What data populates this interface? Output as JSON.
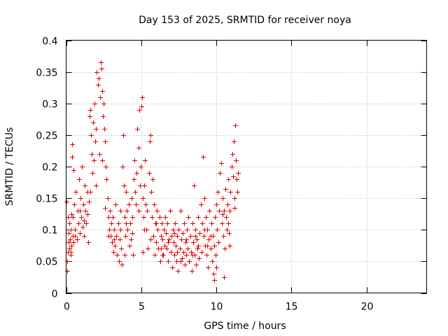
{
  "chart_data": {
    "type": "scatter",
    "title": "Day 153 of 2025, SRMTID for receiver noya",
    "xlabel": "GPS time / hours",
    "ylabel": "SRMTID / TECUs",
    "xlim": [
      0,
      24
    ],
    "ylim": [
      0,
      0.4
    ],
    "xticks": [
      0,
      5,
      10,
      15,
      20
    ],
    "xtick_labels": [
      "0",
      "5",
      "10",
      "15",
      "20"
    ],
    "yticks": [
      0,
      0.05,
      0.1,
      0.15,
      0.2,
      0.25,
      0.3,
      0.35,
      0.4
    ],
    "ytick_labels": [
      "0",
      "0.05",
      "0.1",
      "0.15",
      "0.2",
      "0.25",
      "0.3",
      "0.35",
      "0.4"
    ],
    "grid": true,
    "marker": "+",
    "color": "#e00000",
    "series": [
      {
        "name": "SRMTID",
        "points": [
          [
            0.02,
            0.145
          ],
          [
            0.05,
            0.035
          ],
          [
            0.08,
            0.05
          ],
          [
            0.1,
            0.12
          ],
          [
            0.12,
            0.065
          ],
          [
            0.15,
            0.08
          ],
          [
            0.18,
            0.095
          ],
          [
            0.2,
            0.07
          ],
          [
            0.22,
            0.11
          ],
          [
            0.25,
            0.085
          ],
          [
            0.28,
            0.06
          ],
          [
            0.3,
            0.1
          ],
          [
            0.33,
            0.125
          ],
          [
            0.35,
            0.075
          ],
          [
            0.38,
            0.215
          ],
          [
            0.4,
            0.235
          ],
          [
            0.42,
            0.09
          ],
          [
            0.45,
            0.12
          ],
          [
            0.48,
            0.195
          ],
          [
            0.5,
            0.08
          ],
          [
            0.55,
            0.14
          ],
          [
            0.6,
            0.1
          ],
          [
            0.65,
            0.16
          ],
          [
            0.7,
            0.085
          ],
          [
            0.75,
            0.13
          ],
          [
            0.8,
            0.11
          ],
          [
            0.85,
            0.18
          ],
          [
            0.9,
            0.095
          ],
          [
            0.95,
            0.15
          ],
          [
            1.0,
            0.12
          ],
          [
            1.05,
            0.2
          ],
          [
            1.1,
            0.105
          ],
          [
            1.15,
            0.14
          ],
          [
            1.2,
            0.09
          ],
          [
            1.25,
            0.17
          ],
          [
            1.3,
            0.13
          ],
          [
            1.35,
            0.11
          ],
          [
            1.4,
            0.16
          ],
          [
            1.45,
            0.08
          ],
          [
            1.5,
            0.145
          ],
          [
            1.55,
            0.28
          ],
          [
            1.6,
            0.29
          ],
          [
            1.65,
            0.25
          ],
          [
            1.7,
            0.22
          ],
          [
            1.75,
            0.19
          ],
          [
            1.8,
            0.27
          ],
          [
            1.85,
            0.21
          ],
          [
            1.9,
            0.3
          ],
          [
            1.95,
            0.24
          ],
          [
            2.0,
            0.26
          ],
          [
            2.05,
            0.35
          ],
          [
            2.1,
            0.33
          ],
          [
            2.15,
            0.34
          ],
          [
            2.2,
            0.22
          ],
          [
            2.25,
            0.31
          ],
          [
            2.3,
            0.365
          ],
          [
            2.35,
            0.355
          ],
          [
            2.4,
            0.32
          ],
          [
            2.45,
            0.28
          ],
          [
            2.5,
            0.3
          ],
          [
            2.55,
            0.26
          ],
          [
            2.6,
            0.24
          ],
          [
            2.65,
            0.2
          ],
          [
            2.7,
            0.18
          ],
          [
            2.75,
            0.15
          ],
          [
            2.8,
            0.12
          ],
          [
            2.85,
            0.1
          ],
          [
            2.9,
            0.13
          ],
          [
            2.95,
            0.09
          ],
          [
            3.0,
            0.11
          ],
          [
            3.05,
            0.08
          ],
          [
            3.1,
            0.12
          ],
          [
            3.15,
            0.065
          ],
          [
            3.2,
            0.1
          ],
          [
            3.25,
            0.075
          ],
          [
            3.3,
            0.14
          ],
          [
            3.35,
            0.09
          ],
          [
            3.4,
            0.06
          ],
          [
            3.45,
            0.11
          ],
          [
            3.5,
            0.05
          ],
          [
            3.55,
            0.085
          ],
          [
            3.6,
            0.13
          ],
          [
            3.65,
            0.07
          ],
          [
            3.7,
            0.045
          ],
          [
            3.75,
            0.2
          ],
          [
            3.8,
            0.25
          ],
          [
            3.85,
            0.17
          ],
          [
            3.9,
            0.12
          ],
          [
            3.95,
            0.09
          ],
          [
            4.0,
            0.16
          ],
          [
            4.05,
            0.13
          ],
          [
            4.1,
            0.1
          ],
          [
            4.15,
            0.14
          ],
          [
            4.2,
            0.075
          ],
          [
            4.25,
            0.11
          ],
          [
            4.3,
            0.085
          ],
          [
            4.35,
            0.15
          ],
          [
            4.4,
            0.12
          ],
          [
            4.45,
            0.06
          ],
          [
            4.5,
            0.18
          ],
          [
            4.55,
            0.21
          ],
          [
            4.6,
            0.16
          ],
          [
            4.65,
            0.14
          ],
          [
            4.7,
            0.19
          ],
          [
            4.75,
            0.26
          ],
          [
            4.8,
            0.23
          ],
          [
            4.85,
            0.29
          ],
          [
            4.9,
            0.17
          ],
          [
            4.95,
            0.2
          ],
          [
            5.0,
            0.295
          ],
          [
            5.05,
            0.31
          ],
          [
            5.1,
            0.15
          ],
          [
            5.15,
            0.12
          ],
          [
            5.2,
            0.17
          ],
          [
            5.25,
            0.21
          ],
          [
            5.3,
            0.14
          ],
          [
            5.35,
            0.1
          ],
          [
            5.4,
            0.13
          ],
          [
            5.45,
            0.07
          ],
          [
            5.5,
            0.19
          ],
          [
            5.55,
            0.24
          ],
          [
            5.6,
            0.25
          ],
          [
            5.65,
            0.16
          ],
          [
            5.7,
            0.12
          ],
          [
            5.75,
            0.18
          ],
          [
            5.8,
            0.09
          ],
          [
            5.85,
            0.14
          ],
          [
            5.9,
            0.06
          ],
          [
            5.95,
            0.11
          ],
          [
            6.0,
            0.08
          ],
          [
            6.05,
            0.13
          ],
          [
            6.1,
            0.1
          ],
          [
            6.15,
            0.07
          ],
          [
            6.2,
            0.12
          ],
          [
            6.25,
            0.05
          ],
          [
            6.3,
            0.09
          ],
          [
            6.35,
            0.11
          ],
          [
            6.4,
            0.085
          ],
          [
            6.45,
            0.06
          ],
          [
            6.5,
            0.1
          ],
          [
            6.55,
            0.075
          ],
          [
            6.6,
            0.12
          ],
          [
            6.65,
            0.095
          ],
          [
            6.7,
            0.07
          ],
          [
            6.75,
            0.11
          ],
          [
            6.8,
            0.05
          ],
          [
            6.85,
            0.085
          ],
          [
            6.9,
            0.13
          ],
          [
            6.95,
            0.065
          ],
          [
            7.0,
            0.09
          ],
          [
            7.05,
            0.04
          ],
          [
            7.1,
            0.1
          ],
          [
            7.15,
            0.08
          ],
          [
            7.2,
            0.06
          ],
          [
            7.25,
            0.11
          ],
          [
            7.3,
            0.075
          ],
          [
            7.35,
            0.05
          ],
          [
            7.4,
            0.09
          ],
          [
            7.45,
            0.035
          ],
          [
            7.5,
            0.1
          ],
          [
            7.55,
            0.07
          ],
          [
            7.6,
            0.13
          ],
          [
            7.65,
            0.085
          ],
          [
            7.7,
            0.055
          ],
          [
            7.75,
            0.095
          ],
          [
            7.8,
            0.065
          ],
          [
            7.85,
            0.11
          ],
          [
            7.9,
            0.045
          ],
          [
            7.95,
            0.08
          ],
          [
            8.0,
            0.06
          ],
          [
            8.05,
            0.1
          ],
          [
            8.1,
            0.07
          ],
          [
            8.15,
            0.12
          ],
          [
            8.2,
            0.05
          ],
          [
            8.25,
            0.09
          ],
          [
            8.3,
            0.065
          ],
          [
            8.35,
            0.035
          ],
          [
            8.4,
            0.11
          ],
          [
            8.45,
            0.08
          ],
          [
            8.5,
            0.17
          ],
          [
            8.55,
            0.06
          ],
          [
            8.6,
            0.1
          ],
          [
            8.65,
            0.045
          ],
          [
            8.7,
            0.085
          ],
          [
            8.75,
            0.07
          ],
          [
            8.8,
            0.12
          ],
          [
            8.85,
            0.055
          ],
          [
            8.9,
            0.095
          ],
          [
            8.95,
            0.14
          ],
          [
            9.0,
            0.065
          ],
          [
            9.05,
            0.11
          ],
          [
            9.1,
            0.215
          ],
          [
            9.15,
            0.09
          ],
          [
            9.2,
            0.15
          ],
          [
            9.25,
            0.075
          ],
          [
            9.3,
            0.12
          ],
          [
            9.35,
            0.06
          ],
          [
            9.4,
            0.1
          ],
          [
            9.45,
            0.04
          ],
          [
            9.5,
            0.085
          ],
          [
            9.55,
            0.13
          ],
          [
            9.6,
            0.07
          ],
          [
            9.65,
            0.11
          ],
          [
            9.7,
            0.05
          ],
          [
            9.75,
            0.09
          ],
          [
            9.8,
            0.03
          ],
          [
            9.85,
            0.075
          ],
          [
            9.9,
            0.12
          ],
          [
            9.95,
            0.06
          ],
          [
            10.0,
            0.14
          ],
          [
            10.05,
            0.1
          ],
          [
            10.1,
            0.16
          ],
          [
            10.15,
            0.08
          ],
          [
            10.2,
            0.13
          ],
          [
            10.25,
            0.19
          ],
          [
            10.3,
            0.205
          ],
          [
            10.35,
            0.11
          ],
          [
            10.4,
            0.15
          ],
          [
            10.45,
            0.09
          ],
          [
            10.5,
            0.13
          ],
          [
            10.55,
            0.07
          ],
          [
            10.6,
            0.165
          ],
          [
            10.65,
            0.12
          ],
          [
            10.7,
            0.1
          ],
          [
            10.75,
            0.14
          ],
          [
            10.8,
            0.18
          ],
          [
            10.85,
            0.095
          ],
          [
            10.9,
            0.13
          ],
          [
            10.95,
            0.16
          ],
          [
            11.0,
            0.2
          ],
          [
            11.05,
            0.22
          ],
          [
            11.1,
            0.185
          ],
          [
            11.15,
            0.24
          ],
          [
            11.2,
            0.15
          ],
          [
            11.25,
            0.265
          ],
          [
            11.3,
            0.21
          ],
          [
            11.35,
            0.18
          ],
          [
            11.4,
            0.16
          ],
          [
            11.45,
            0.19
          ],
          [
            0.3,
            0.065
          ],
          [
            0.6,
            0.09
          ],
          [
            0.9,
            0.13
          ],
          [
            1.2,
            0.115
          ],
          [
            1.6,
            0.16
          ],
          [
            2.0,
            0.17
          ],
          [
            2.4,
            0.21
          ],
          [
            2.8,
            0.09
          ],
          [
            3.2,
            0.085
          ],
          [
            3.6,
            0.1
          ],
          [
            4.0,
            0.11
          ],
          [
            4.4,
            0.095
          ],
          [
            4.8,
            0.13
          ],
          [
            5.2,
            0.1
          ],
          [
            5.6,
            0.085
          ],
          [
            6.0,
            0.11
          ],
          [
            6.4,
            0.06
          ],
          [
            6.8,
            0.08
          ],
          [
            7.2,
            0.095
          ],
          [
            7.6,
            0.05
          ],
          [
            8.0,
            0.085
          ],
          [
            8.4,
            0.06
          ],
          [
            8.8,
            0.075
          ],
          [
            9.2,
            0.1
          ],
          [
            9.6,
            0.09
          ],
          [
            10.0,
            0.04
          ],
          [
            10.4,
            0.125
          ],
          [
            10.8,
            0.11
          ],
          [
            11.2,
            0.135
          ],
          [
            10.5,
            0.025
          ],
          [
            9.85,
            0.02
          ],
          [
            1.4,
            0.125
          ],
          [
            2.6,
            0.135
          ],
          [
            3.9,
            0.06
          ],
          [
            5.1,
            0.065
          ],
          [
            6.3,
            0.07
          ],
          [
            7.4,
            0.065
          ],
          [
            8.6,
            0.09
          ],
          [
            9.4,
            0.075
          ],
          [
            10.9,
            0.075
          ]
        ]
      }
    ]
  }
}
